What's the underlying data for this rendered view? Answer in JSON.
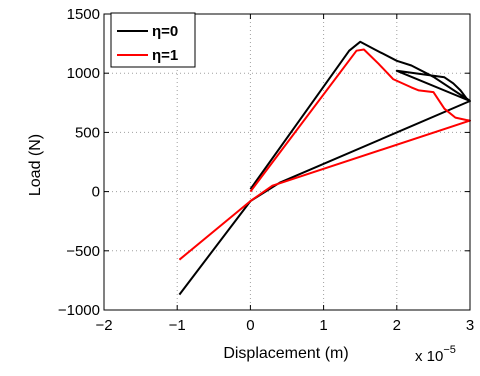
{
  "chart_data": {
    "type": "line",
    "title": "",
    "xlabel": "Displacement (m)",
    "ylabel": "Load (N)",
    "x_exponent": {
      "base": "x 10",
      "power": "−5"
    },
    "xlim": [
      -2,
      3
    ],
    "ylim": [
      -1000,
      1500
    ],
    "xticks": [
      -2,
      -1,
      0,
      1,
      2,
      3
    ],
    "xtick_labels": [
      "−2",
      "−1",
      "0",
      "1",
      "2",
      "3"
    ],
    "yticks": [
      -1000,
      -500,
      0,
      500,
      1000,
      1500
    ],
    "ytick_labels": [
      "−1000",
      "−500",
      "0",
      "500",
      "1000",
      "1500"
    ],
    "grid": true,
    "legend_position": "top-left",
    "series": [
      {
        "name": "η=0",
        "color": "#000000",
        "points": [
          [
            -0.97,
            -870
          ],
          [
            0,
            -80
          ],
          [
            0.4,
            75
          ],
          [
            3.0,
            765
          ],
          [
            2.0,
            1020
          ],
          [
            2.65,
            965
          ],
          [
            2.77,
            915
          ],
          [
            2.87,
            855
          ],
          [
            2.95,
            790
          ],
          [
            3.0,
            765
          ],
          [
            2.5,
            970
          ],
          [
            2.2,
            1065
          ],
          [
            2.0,
            1105
          ],
          [
            1.7,
            1200
          ],
          [
            1.5,
            1265
          ],
          [
            1.35,
            1190
          ],
          [
            0,
            20
          ]
        ]
      },
      {
        "name": "η=1",
        "color": "#ff0000",
        "points": [
          [
            -0.97,
            -575
          ],
          [
            0,
            -80
          ],
          [
            0.3,
            50
          ],
          [
            3.0,
            600
          ],
          [
            2.95,
            605
          ],
          [
            2.8,
            625
          ],
          [
            2.65,
            700
          ],
          [
            2.5,
            840
          ],
          [
            2.3,
            855
          ],
          [
            2.2,
            880
          ],
          [
            1.95,
            950
          ],
          [
            1.75,
            1080
          ],
          [
            1.55,
            1200
          ],
          [
            1.45,
            1190
          ],
          [
            0,
            0
          ]
        ]
      }
    ]
  }
}
